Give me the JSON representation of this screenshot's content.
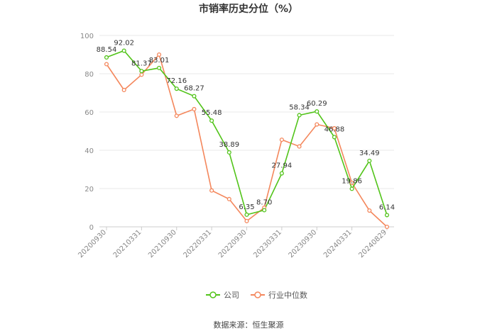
{
  "chart_data": {
    "type": "line",
    "title": "市销率历史分位（%）",
    "xlabel": "",
    "ylabel": "",
    "ylim": [
      0,
      100
    ],
    "yticks": [
      0,
      20,
      40,
      60,
      80,
      100
    ],
    "x_tick_labels": [
      "20200930",
      "20210331",
      "20210930",
      "20220331",
      "20220930",
      "20230331",
      "20230930",
      "20240331",
      "20240829"
    ],
    "x_points": [
      "20200930",
      "20201231",
      "20210331",
      "20210630",
      "20210930",
      "20211231",
      "20220331",
      "20220630",
      "20220930",
      "20221231",
      "20230331",
      "20230630",
      "20230930",
      "20231231",
      "20240331",
      "20240630",
      "20240829"
    ],
    "series": [
      {
        "name": "公司",
        "color": "#52c41a",
        "values": [
          88.54,
          92.02,
          81.37,
          83.01,
          72.16,
          68.27,
          55.48,
          38.89,
          6.35,
          8.7,
          27.94,
          58.34,
          60.29,
          46.88,
          19.86,
          34.49,
          6.14
        ],
        "labels": [
          "88.54",
          "92.02",
          "81.37",
          "83.01",
          "72.16",
          "68.27",
          "55.48",
          "38.89",
          "6.35",
          "8.70",
          "27.94",
          "58.34",
          "60.29",
          "46.88",
          "19.86",
          "34.49",
          "6.14"
        ]
      },
      {
        "name": "行业中位数",
        "color": "#f4875c",
        "values": [
          85,
          71.5,
          79.5,
          90,
          58,
          61.5,
          19,
          14.5,
          3,
          10,
          45.5,
          42,
          53.5,
          51.5,
          23,
          8.5,
          0
        ]
      }
    ],
    "grid": true,
    "legend": "bottom-center"
  },
  "source": "数据来源：恒生聚源"
}
